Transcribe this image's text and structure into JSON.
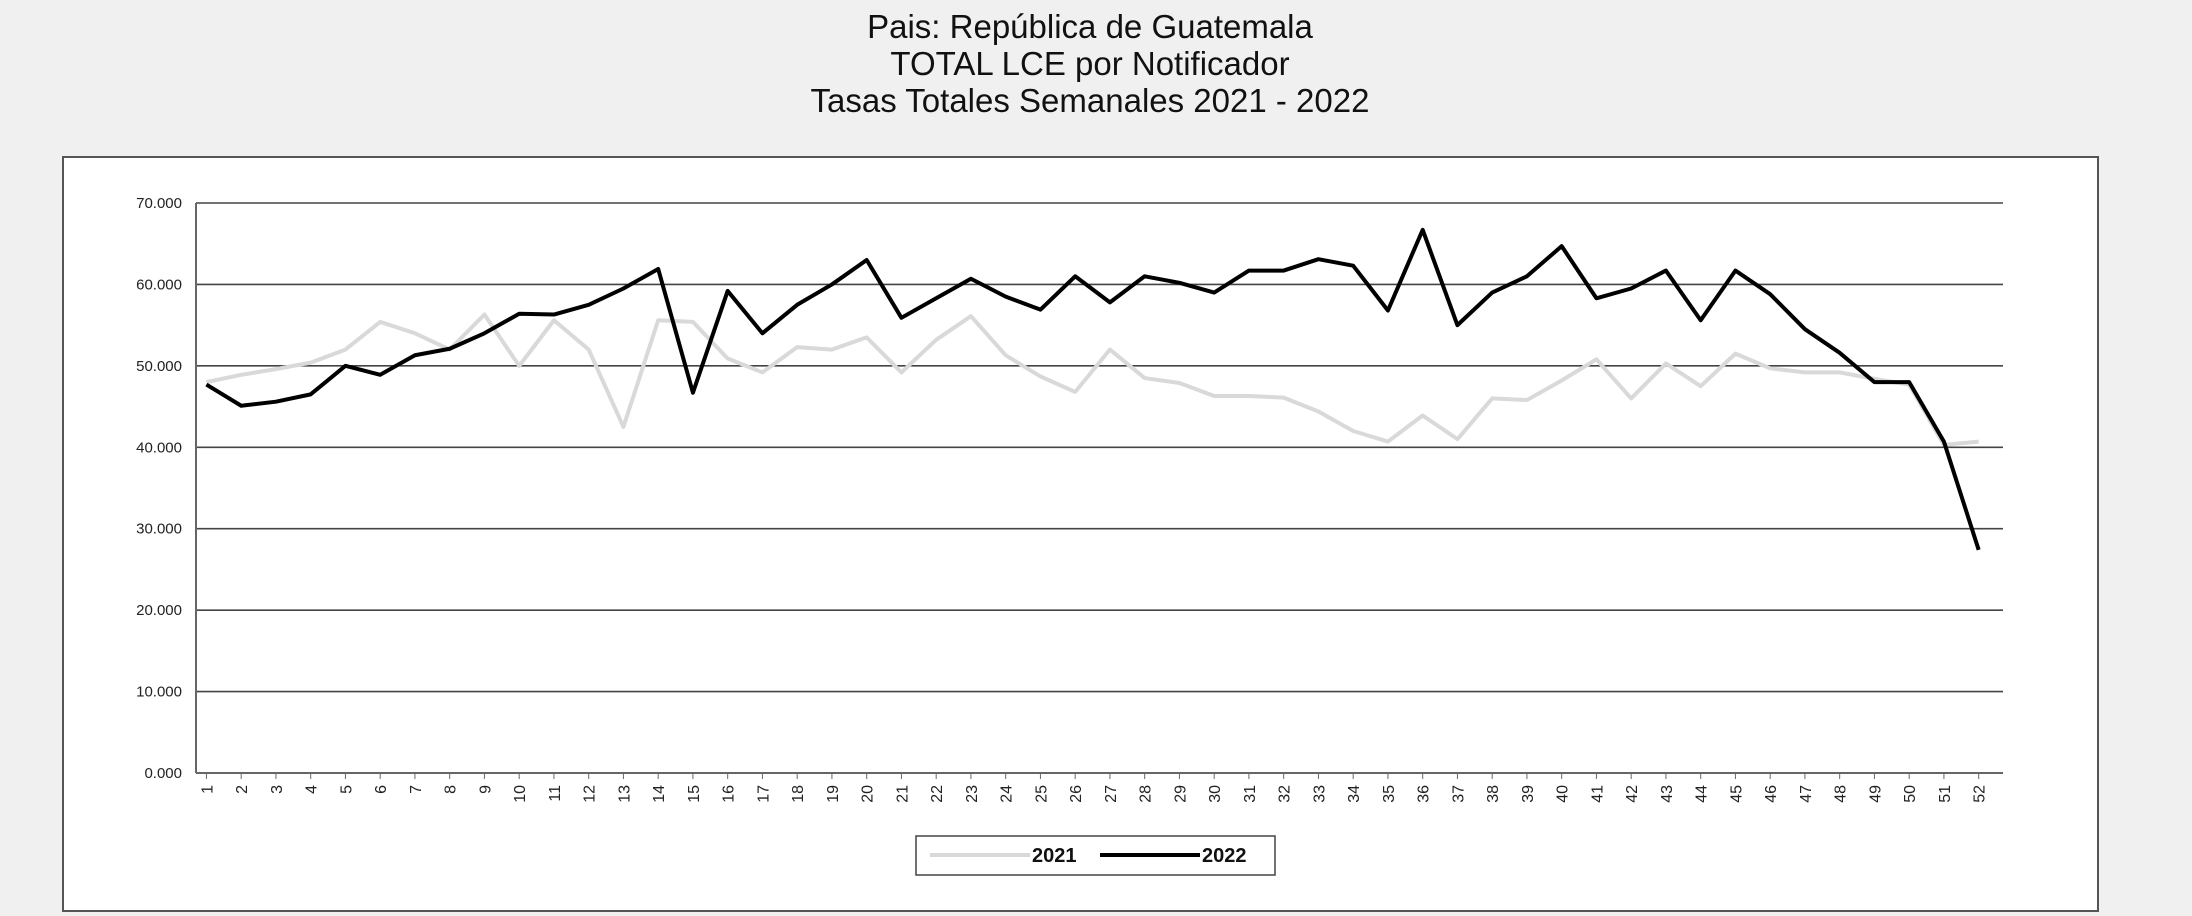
{
  "chart_data": {
    "type": "line",
    "title": [
      "Pais: República de Guatemala",
      "TOTAL LCE por Notificador",
      "Tasas Totales Semanales 2021 - 2022"
    ],
    "categories": [
      "1",
      "2",
      "3",
      "4",
      "5",
      "6",
      "7",
      "8",
      "9",
      "10",
      "11",
      "12",
      "13",
      "14",
      "15",
      "16",
      "17",
      "18",
      "19",
      "20",
      "21",
      "22",
      "23",
      "24",
      "25",
      "26",
      "27",
      "28",
      "29",
      "30",
      "31",
      "32",
      "33",
      "34",
      "35",
      "36",
      "37",
      "38",
      "39",
      "40",
      "41",
      "42",
      "43",
      "44",
      "45",
      "46",
      "47",
      "48",
      "49",
      "50",
      "51",
      "52"
    ],
    "series": [
      {
        "name": "2021",
        "color": "#d9d9d9",
        "values": [
          48,
          48.9,
          49.6,
          50.4,
          52,
          55.4,
          54,
          52,
          56.3,
          50,
          55.6,
          52,
          42.5,
          55.6,
          55.4,
          50.9,
          49.2,
          52.3,
          52,
          53.5,
          49.2,
          53.2,
          56.1,
          51.3,
          48.7,
          46.8,
          52,
          48.5,
          47.9,
          46.3,
          46.3,
          46.1,
          44.4,
          42,
          40.7,
          43.9,
          41,
          46,
          45.8,
          48.2,
          50.8,
          46,
          50.3,
          47.5,
          51.5,
          49.7,
          49.2,
          49.2,
          48.4,
          47.7,
          40.3,
          40.7
        ]
      },
      {
        "name": "2022",
        "color": "#000000",
        "values": [
          47.7,
          45.1,
          45.6,
          46.5,
          50,
          48.9,
          51.3,
          52.1,
          54,
          56.4,
          56.3,
          57.5,
          59.5,
          61.9,
          46.7,
          59.2,
          54,
          57.5,
          60,
          63,
          55.9,
          58.3,
          60.7,
          58.5,
          56.9,
          61,
          57.8,
          61,
          60.2,
          59,
          61.7,
          61.7,
          63.1,
          62.3,
          56.8,
          66.7,
          55,
          59,
          61,
          64.7,
          58.3,
          59.5,
          61.7,
          55.6,
          61.7,
          58.8,
          54.5,
          51.6,
          48,
          48,
          40.7,
          27.4
        ]
      }
    ],
    "ylim": [
      0,
      70
    ],
    "yticks": [
      {
        "value": 0,
        "label": "0.000"
      },
      {
        "value": 10,
        "label": "10.000"
      },
      {
        "value": 20,
        "label": "20.000"
      },
      {
        "value": 30,
        "label": "30.000"
      },
      {
        "value": 40,
        "label": "40.000"
      },
      {
        "value": 50,
        "label": "50.000"
      },
      {
        "value": 60,
        "label": "60.000"
      },
      {
        "value": 70,
        "label": "70.000"
      }
    ],
    "grid": true,
    "legend": "bottom"
  }
}
